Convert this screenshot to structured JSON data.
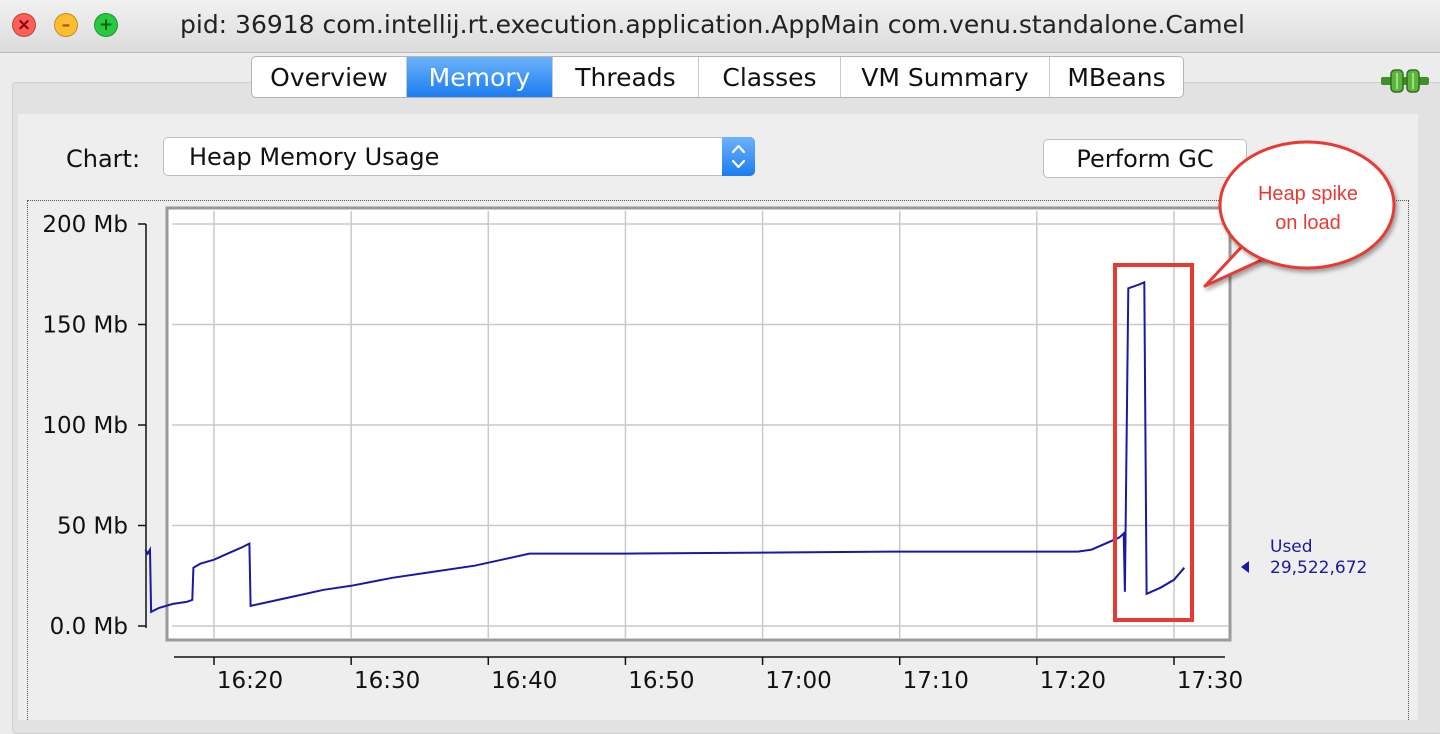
{
  "window": {
    "title": "pid: 36918 com.intellij.rt.execution.application.AppMain com.venu.standalone.Camel"
  },
  "tabs": [
    {
      "label": "Overview",
      "active": false
    },
    {
      "label": "Memory",
      "active": true
    },
    {
      "label": "Threads",
      "active": false
    },
    {
      "label": "Classes",
      "active": false
    },
    {
      "label": "VM Summary",
      "active": false
    },
    {
      "label": "MBeans",
      "active": false
    }
  ],
  "icons": {
    "connection": "connection-plug-icon",
    "dropdown": "chevron-updown-icon"
  },
  "toolbar": {
    "chart_label": "Chart:",
    "chart_select_value": "Heap Memory Usage",
    "gc_button": "Perform GC"
  },
  "legend": {
    "used_label": "Used",
    "used_value": "29,522,672"
  },
  "annotation": {
    "text_line1": "Heap spike",
    "text_line2": "on load",
    "color": "#e63a32"
  },
  "colors": {
    "series": "#1a1aa0",
    "accent": "#1b7cf0",
    "annotation": "#e63a32"
  },
  "chart_data": {
    "type": "line",
    "y_ticks": [
      "0.0 Mb",
      "50 Mb",
      "100 Mb",
      "150 Mb",
      "200 Mb"
    ],
    "y_tick_values": [
      0,
      50,
      100,
      150,
      200
    ],
    "x_ticks": [
      "16:20",
      "16:30",
      "16:40",
      "16:50",
      "17:00",
      "17:10",
      "17:20",
      "17:30"
    ],
    "ylim": [
      0,
      200
    ],
    "grid": true,
    "series": [
      {
        "name": "Used",
        "points": [
          [
            "16:15:00",
            38
          ],
          [
            "16:15:10",
            36
          ],
          [
            "16:15:20",
            38
          ],
          [
            "16:15:25",
            7
          ],
          [
            "16:16:00",
            9
          ],
          [
            "16:17:00",
            11
          ],
          [
            "16:18:00",
            12
          ],
          [
            "16:18:25",
            13
          ],
          [
            "16:18:30",
            29
          ],
          [
            "16:19:00",
            31
          ],
          [
            "16:20:00",
            33
          ],
          [
            "16:21:00",
            36
          ],
          [
            "16:22:00",
            39
          ],
          [
            "16:22:35",
            41
          ],
          [
            "16:22:40",
            10
          ],
          [
            "16:24:00",
            12
          ],
          [
            "16:26:00",
            15
          ],
          [
            "16:28:00",
            18
          ],
          [
            "16:30:00",
            20
          ],
          [
            "16:33:00",
            24
          ],
          [
            "16:36:00",
            27
          ],
          [
            "16:39:00",
            30
          ],
          [
            "16:41:00",
            33
          ],
          [
            "16:43:00",
            36
          ],
          [
            "16:50:00",
            36
          ],
          [
            "17:00:00",
            36.5
          ],
          [
            "17:10:00",
            37
          ],
          [
            "17:23:00",
            37
          ],
          [
            "17:24:00",
            38
          ],
          [
            "17:26:00",
            44
          ],
          [
            "17:26:20",
            46
          ],
          [
            "17:26:25",
            17
          ],
          [
            "17:26:40",
            168
          ],
          [
            "17:27:30",
            170
          ],
          [
            "17:27:50",
            171
          ],
          [
            "17:28:00",
            16
          ],
          [
            "17:29:00",
            19
          ],
          [
            "17:30:00",
            23
          ],
          [
            "17:30:45",
            29
          ]
        ]
      }
    ]
  }
}
